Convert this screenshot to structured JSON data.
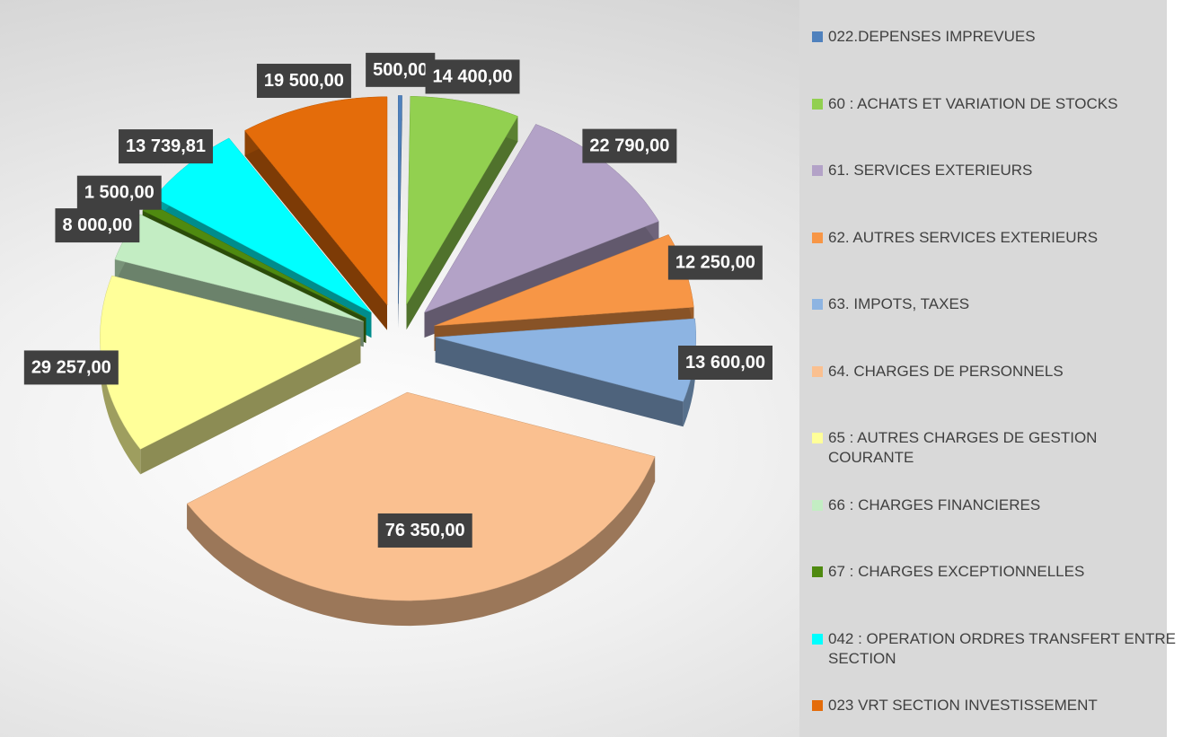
{
  "chart_data": {
    "type": "pie",
    "categories": [
      "022.DEPENSES IMPREVUES",
      "60 : ACHATS ET VARIATION DE STOCKS",
      "61. SERVICES EXTERIEURS",
      "62. AUTRES SERVICES EXTERIEURS",
      "63. IMPOTS, TAXES",
      "64. CHARGES DE PERSONNELS",
      "65 : AUTRES CHARGES DE GESTION COURANTE",
      "66 : CHARGES FINANCIERES",
      "67 : CHARGES EXCEPTIONNELLES",
      "042 : OPERATION ORDRES TRANSFERT ENTRE SECTION",
      "023 VRT SECTION INVESTISSEMENT"
    ],
    "values": [
      500,
      14400,
      22790,
      12250,
      13600,
      76350,
      29257,
      8000,
      1500,
      13739.81,
      19500
    ],
    "value_labels": [
      "500,00",
      "14 400,00",
      "22 790,00",
      "12 250,00",
      "13 600,00",
      "76 350,00",
      "29 257,00",
      "8 000,00",
      "1 500,00",
      "13 739,81",
      "19 500,00"
    ],
    "colors": [
      "#4f81bd",
      "#92d050",
      "#b3a2c7",
      "#f79646",
      "#8db4e2",
      "#fac090",
      "#ffff99",
      "#c3edc3",
      "#4f8a10",
      "#00ffff",
      "#e46c0a"
    ],
    "legend": "right"
  }
}
